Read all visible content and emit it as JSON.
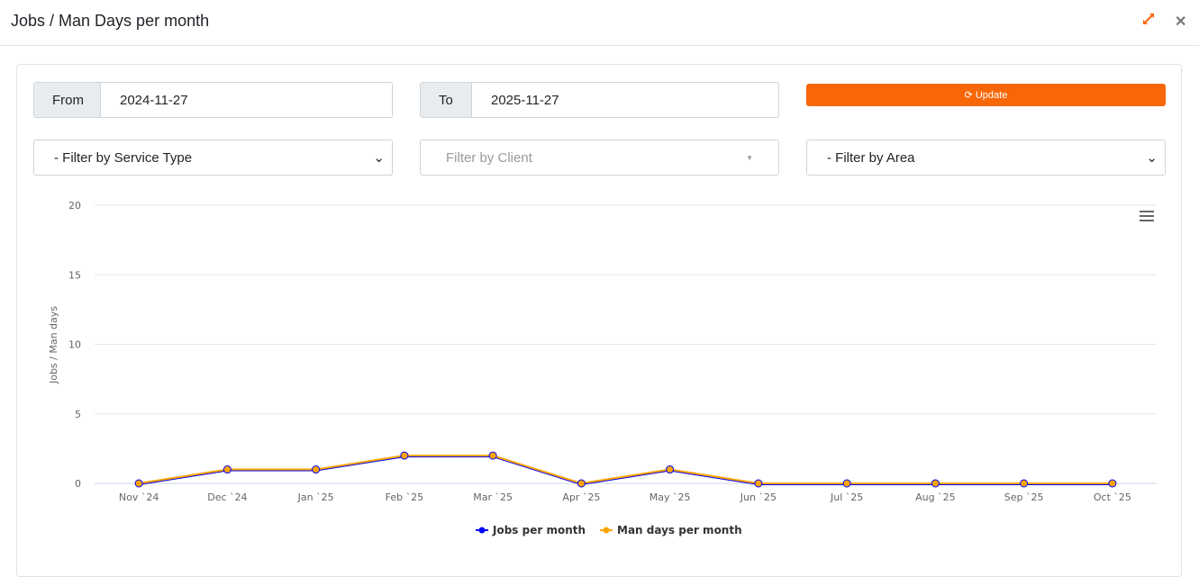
{
  "header": {
    "title": "Jobs / Man Days per month",
    "expand_icon": "expand-arrows-icon",
    "close_icon": "close-icon",
    "close_glyph": "✕"
  },
  "filters": {
    "from_label": "From",
    "from_value": "2024-11-27",
    "to_label": "To",
    "to_value": "2025-11-27",
    "update_label": "Update",
    "update_icon": "refresh-icon",
    "service_type": "- Filter by Service Type",
    "client_placeholder": "Filter by Client",
    "area": "- Filter by Area"
  },
  "colors": {
    "accent": "#f76707",
    "jobs": "#0000ff",
    "mandays": "#ffa500"
  },
  "chart_data": {
    "type": "line",
    "ylabel": "Jobs / Man days",
    "ylim": [
      0,
      20
    ],
    "yticks": [
      0,
      5,
      10,
      15,
      20
    ],
    "grid": true,
    "legend": "bottom-center",
    "categories": [
      "Nov `24",
      "Dec `24",
      "Jan `25",
      "Feb `25",
      "Mar `25",
      "Apr `25",
      "May `25",
      "Jun `25",
      "Jul `25",
      "Aug `25",
      "Sep `25",
      "Oct `25"
    ],
    "series": [
      {
        "name": "Jobs per month",
        "color": "#0000ff",
        "values": [
          0,
          1,
          1,
          2,
          2,
          0,
          1,
          0,
          0,
          0,
          0,
          0
        ]
      },
      {
        "name": "Man days per month",
        "color": "#ffa500",
        "values": [
          0,
          1,
          1,
          2,
          2,
          0,
          1,
          0,
          0,
          0,
          0,
          0
        ]
      }
    ],
    "menu_icon": "hamburger-menu-icon"
  }
}
